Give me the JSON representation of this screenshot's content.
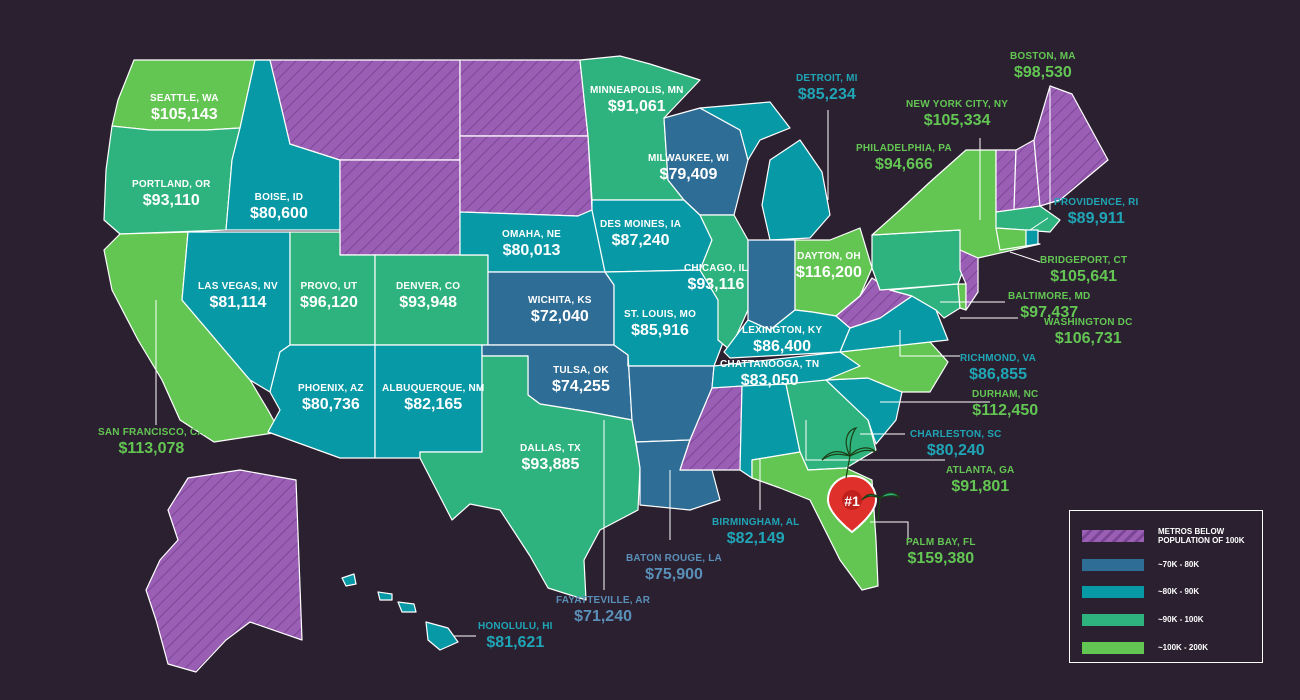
{
  "colors": {
    "background": "#2b2030",
    "below_100k": "#9a5fb4",
    "k70_80": "#2e6d96",
    "k80_90": "#0799a6",
    "k90_100": "#2eb37e",
    "k100_200": "#63c653",
    "callout_green": "#63c653",
    "callout_teal": "#1fa5b5",
    "callout_steel": "#5a8fb8",
    "pin_red": "#e0302b"
  },
  "metros": [
    {
      "city": "SEATTLE, WA",
      "salary": "$105,143"
    },
    {
      "city": "PORTLAND, OR",
      "salary": "$93,110"
    },
    {
      "city": "BOISE, ID",
      "salary": "$80,600"
    },
    {
      "city": "SAN FRANCISCO, CA",
      "salary": "$113,078"
    },
    {
      "city": "LAS VEGAS, NV",
      "salary": "$81,114"
    },
    {
      "city": "PROVO, UT",
      "salary": "$96,120"
    },
    {
      "city": "DENVER, CO",
      "salary": "$93,948"
    },
    {
      "city": "PHOENIX, AZ",
      "salary": "$80,736"
    },
    {
      "city": "ALBUQUERQUE, NM",
      "salary": "$82,165"
    },
    {
      "city": "MINNEAPOLIS, MN",
      "salary": "$91,061"
    },
    {
      "city": "OMAHA,  NE",
      "salary": "$80,013"
    },
    {
      "city": "WICHITA, KS",
      "salary": "$72,040"
    },
    {
      "city": "DES MOINES, IA",
      "salary": "$87,240"
    },
    {
      "city": "MILWAUKEE, WI",
      "salary": "$79,409"
    },
    {
      "city": "CHICAGO, IL",
      "salary": "$93,116"
    },
    {
      "city": "ST. LOUIS, MO",
      "salary": "$85,916"
    },
    {
      "city": "TULSA, OK",
      "salary": "$74,255"
    },
    {
      "city": "DALLAS, TX",
      "salary": "$93,885"
    },
    {
      "city": "DAYTON, OH",
      "salary": "$116,200"
    },
    {
      "city": "LEXINGTON, KY",
      "salary": "$86,400"
    },
    {
      "city": "CHATTANOOGA, TN",
      "salary": "$83,050"
    },
    {
      "city": "DETROIT, MI",
      "salary": "$85,234"
    },
    {
      "city": "BOSTON, MA",
      "salary": "$98,530"
    },
    {
      "city": "NEW YORK CITY, NY",
      "salary": "$105,334"
    },
    {
      "city": "PHILADELPHIA, PA",
      "salary": "$94,666"
    },
    {
      "city": "PROVIDENCE, RI",
      "salary": "$89,911"
    },
    {
      "city": "BRIDGEPORT, CT",
      "salary": "$105,641"
    },
    {
      "city": "BALTIMORE, MD",
      "salary": "$97,437"
    },
    {
      "city": "WASHINGTON DC",
      "salary": "$106,731"
    },
    {
      "city": "RICHMOND, VA",
      "salary": "$86,855"
    },
    {
      "city": "DURHAM, NC",
      "salary": "$112,450"
    },
    {
      "city": "CHARLESTON, SC",
      "salary": "$80,240"
    },
    {
      "city": "ATLANTA, GA",
      "salary": "$91,801"
    },
    {
      "city": "PALM BAY, FL",
      "salary": "$159,380"
    },
    {
      "city": "BIRMINGHAM, AL",
      "salary": "$82,149"
    },
    {
      "city": "BATON ROUGE, LA",
      "salary": "$75,900"
    },
    {
      "city": "FAYATTEVILLE, AR",
      "salary": "$71,240"
    },
    {
      "city": "HONOLULU, HI",
      "salary": "$81,621"
    }
  ],
  "pin_label": "#1",
  "legend": [
    {
      "label": "METROS BELOW POPULATION OF 100K",
      "pattern": "hatched"
    },
    {
      "label": "~70K - 80K",
      "pattern": "solid"
    },
    {
      "label": "~80K - 90K",
      "pattern": "solid"
    },
    {
      "label": "~90K - 100K",
      "pattern": "solid"
    },
    {
      "label": "~100K - 200K",
      "pattern": "solid"
    }
  ]
}
